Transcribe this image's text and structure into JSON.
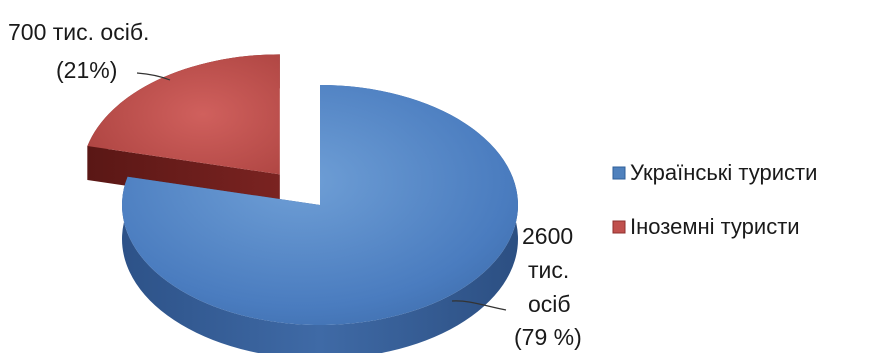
{
  "chart_data": {
    "type": "pie",
    "style": "3d-exploded",
    "categories": [
      "Українські туристи",
      "Іноземні туристи"
    ],
    "values": [
      2600,
      700
    ],
    "percents": [
      79,
      21
    ],
    "colors": [
      "#4f81bd",
      "#c0504d"
    ],
    "labels": [
      [
        "2600",
        "тис.",
        "осіб",
        "(79 %)"
      ],
      [
        "700 тис. осіб.",
        "(21%)"
      ]
    ],
    "legend": {
      "position": "right",
      "entries": [
        "Українські туристи",
        "Іноземні туристи"
      ]
    }
  }
}
